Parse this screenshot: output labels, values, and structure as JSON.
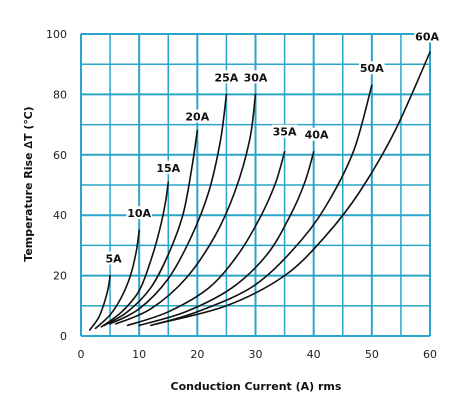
{
  "chart_data": {
    "type": "line",
    "title": "",
    "xlabel": "Conduction Current (A) rms",
    "ylabel": "Temperature Rise ∆T (℃)",
    "xlim": [
      0,
      60
    ],
    "ylim": [
      0,
      100
    ],
    "xticks": [
      0,
      10,
      20,
      30,
      40,
      50,
      60
    ],
    "yticks": [
      0,
      20,
      40,
      60,
      80,
      100
    ],
    "x_minor_step": 5,
    "y_minor_step": 10,
    "grid": true,
    "grid_color": "#2aa5c8",
    "line_color": "#111111",
    "series": [
      {
        "name": "5A",
        "points": [
          [
            1.5,
            2
          ],
          [
            3,
            6
          ],
          [
            4,
            11
          ],
          [
            4.7,
            16
          ],
          [
            5,
            20
          ]
        ]
      },
      {
        "name": "10A",
        "points": [
          [
            2.5,
            2.5
          ],
          [
            5,
            7
          ],
          [
            7,
            13
          ],
          [
            8.5,
            20
          ],
          [
            9.5,
            28
          ],
          [
            10,
            35
          ]
        ]
      },
      {
        "name": "15A",
        "points": [
          [
            3.5,
            3
          ],
          [
            7,
            8
          ],
          [
            10,
            15
          ],
          [
            12,
            25
          ],
          [
            13.5,
            35
          ],
          [
            14.5,
            44
          ],
          [
            15,
            51
          ]
        ]
      },
      {
        "name": "20A",
        "points": [
          [
            4,
            3.5
          ],
          [
            8,
            8
          ],
          [
            12,
            16
          ],
          [
            15,
            27
          ],
          [
            17.5,
            40
          ],
          [
            19,
            55
          ],
          [
            20,
            68
          ]
        ]
      },
      {
        "name": "25A",
        "points": [
          [
            5,
            4
          ],
          [
            10,
            9
          ],
          [
            15,
            19
          ],
          [
            19,
            33
          ],
          [
            22,
            48
          ],
          [
            24,
            65
          ],
          [
            25,
            80
          ]
        ]
      },
      {
        "name": "30A",
        "points": [
          [
            6,
            4
          ],
          [
            12,
            9
          ],
          [
            18,
            19
          ],
          [
            23,
            33
          ],
          [
            26.5,
            48
          ],
          [
            29,
            65
          ],
          [
            30,
            80
          ]
        ]
      },
      {
        "name": "35A",
        "points": [
          [
            8,
            3.5
          ],
          [
            15,
            8
          ],
          [
            22,
            16
          ],
          [
            27,
            27
          ],
          [
            31,
            40
          ],
          [
            33.5,
            51
          ],
          [
            35,
            61
          ]
        ]
      },
      {
        "name": "40A",
        "points": [
          [
            10,
            3.5
          ],
          [
            18,
            8
          ],
          [
            26,
            16
          ],
          [
            32,
            27
          ],
          [
            36,
            40
          ],
          [
            38.5,
            51
          ],
          [
            40,
            61
          ]
        ]
      },
      {
        "name": "50A",
        "points": [
          [
            12,
            3.5
          ],
          [
            20,
            8
          ],
          [
            30,
            17
          ],
          [
            38,
            32
          ],
          [
            43,
            46
          ],
          [
            47,
            62
          ],
          [
            50,
            83
          ]
        ]
      },
      {
        "name": "60A",
        "points": [
          [
            13,
            4
          ],
          [
            25,
            10
          ],
          [
            35,
            20
          ],
          [
            42,
            33
          ],
          [
            48,
            48
          ],
          [
            54,
            68
          ],
          [
            60,
            94
          ]
        ]
      }
    ],
    "labels": [
      {
        "text": "5A",
        "x": 5.6,
        "y": 25
      },
      {
        "text": "10A",
        "x": 10,
        "y": 40
      },
      {
        "text": "15A",
        "x": 15,
        "y": 55
      },
      {
        "text": "20A",
        "x": 20,
        "y": 72
      },
      {
        "text": "25A",
        "x": 25,
        "y": 85
      },
      {
        "text": "30A",
        "x": 30,
        "y": 85
      },
      {
        "text": "35A",
        "x": 35,
        "y": 67
      },
      {
        "text": "40A",
        "x": 40.5,
        "y": 66
      },
      {
        "text": "50A",
        "x": 50,
        "y": 88
      },
      {
        "text": "60A",
        "x": 59.5,
        "y": 98.5
      }
    ]
  }
}
